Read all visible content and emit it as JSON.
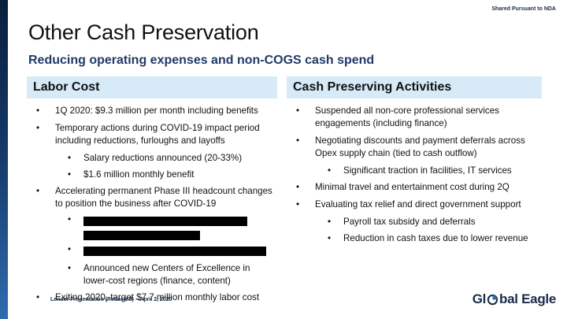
{
  "header": {
    "nda_note": "Shared Pursuant to NDA"
  },
  "slide": {
    "title": "Other Cash Preservation",
    "subtitle": "Reducing operating expenses and non-COGS cash spend"
  },
  "labor": {
    "heading": "Labor Cost",
    "b1": "1Q 2020: $9.3 million per month including benefits",
    "b2": "Temporary actions during COVID-19 impact period including reductions, furloughs and layoffs",
    "b2_sub1": "Salary reductions announced (20-33%)",
    "b2_sub2": "$1.6 million monthly benefit",
    "b3": "Accelerating permanent Phase III headcount changes to position the business after COVID-19",
    "b3_sub3": "Announced new Centers of Excellence in lower-cost regions (finance, content)",
    "b4": "Exiting 2020, target $7.7 million monthly labor cost"
  },
  "cash": {
    "heading": "Cash Preserving Activities",
    "b1": "Suspended all non-core professional services engagements (including finance)",
    "b2": "Negotiating discounts and payment deferrals across Opex supply chain (tied to cash outflow)",
    "b2_sub1": "Significant traction in facilities, IT services",
    "b3": "Minimal travel and entertainment cost during 2Q",
    "b4": "Evaluating tax relief and direct government support",
    "b4_sub1": "Payroll tax subsidy and deferrals",
    "b4_sub2": "Reduction in cash taxes due to lower revenue"
  },
  "footer": {
    "text": "Lender Presentation (Redacted) – April 2, 2020"
  },
  "logo": {
    "part1": "Gl",
    "part2": "bal Eagle"
  },
  "colors": {
    "accent": "#1f3a66",
    "header_bg": "#d6eaf8",
    "bar_dark": "#0a1f3d"
  }
}
